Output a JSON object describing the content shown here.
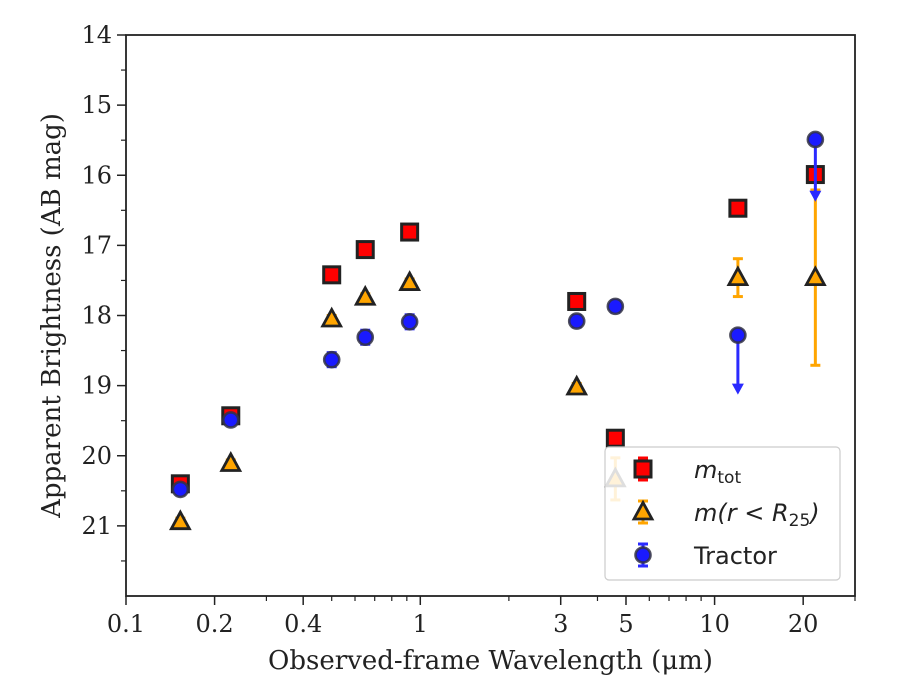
{
  "chart_data": {
    "type": "scatter",
    "title": "",
    "xlabel": "Observed-frame Wavelength (μm)",
    "ylabel": "Apparent Brightness (AB mag)",
    "x_scale": "log",
    "xlim": [
      0.1,
      30
    ],
    "ylim": [
      22,
      14
    ],
    "y_inverted": true,
    "x_ticks": [
      0.1,
      0.2,
      0.4,
      1,
      3,
      5,
      10,
      20
    ],
    "x_tick_labels": [
      "0.1",
      "0.2",
      "0.4",
      "1",
      "3",
      "5",
      "10",
      "20"
    ],
    "y_ticks": [
      14,
      15,
      16,
      17,
      18,
      19,
      20,
      21
    ],
    "y_tick_labels": [
      "14",
      "15",
      "16",
      "17",
      "18",
      "19",
      "20",
      "21"
    ],
    "grid": false,
    "legend_position": "bottom-right",
    "series": [
      {
        "name": "m_tot",
        "legend_main": "m",
        "legend_sub": "tot",
        "marker": "square",
        "color": "#ff0000",
        "edge_color": "#222222",
        "err_color": "#ff0000",
        "points": [
          {
            "x": 0.153,
            "y": 20.4,
            "err": 0.1
          },
          {
            "x": 0.227,
            "y": 19.43,
            "err": 0.1
          },
          {
            "x": 0.5,
            "y": 17.42,
            "err": 0.05
          },
          {
            "x": 0.65,
            "y": 17.06,
            "err": 0.05
          },
          {
            "x": 0.92,
            "y": 16.81,
            "err": 0.05
          },
          {
            "x": 3.4,
            "y": 17.8,
            "err": 0.05
          },
          {
            "x": 4.6,
            "y": 19.75,
            "err": 0.05
          },
          {
            "x": 12.0,
            "y": 16.47,
            "err": 0.05
          },
          {
            "x": 22.0,
            "y": 15.99,
            "err": 0.05
          }
        ]
      },
      {
        "name": "m(r < R_25)",
        "legend_main": "m(r < R",
        "legend_sub": "25",
        "legend_tail": ")",
        "marker": "triangle",
        "color": "#ffa500",
        "edge_color": "#222222",
        "err_color": "#ffa500",
        "points": [
          {
            "x": 0.153,
            "y": 20.94,
            "err": 0.05
          },
          {
            "x": 0.227,
            "y": 20.11,
            "err": 0.05
          },
          {
            "x": 0.5,
            "y": 18.05,
            "err": 0.05
          },
          {
            "x": 0.65,
            "y": 17.74,
            "err": 0.05
          },
          {
            "x": 0.92,
            "y": 17.53,
            "err": 0.05
          },
          {
            "x": 3.4,
            "y": 19.02,
            "err": 0.05
          },
          {
            "x": 4.6,
            "y": 20.33,
            "err": 0.3
          },
          {
            "x": 12.0,
            "y": 17.46,
            "err": 0.27
          },
          {
            "x": 22.0,
            "y": 17.46,
            "err": 1.25
          }
        ]
      },
      {
        "name": "Tractor",
        "marker": "circle",
        "color": "#1a1aff",
        "edge_color": "#333344",
        "err_color": "#2a2aff",
        "points": [
          {
            "x": 0.153,
            "y": 20.48,
            "err": 0.06
          },
          {
            "x": 0.227,
            "y": 19.49,
            "err": 0.06
          },
          {
            "x": 0.5,
            "y": 18.63,
            "err": 0.1
          },
          {
            "x": 0.65,
            "y": 18.31,
            "err": 0.1
          },
          {
            "x": 0.92,
            "y": 18.09,
            "err": 0.1
          },
          {
            "x": 3.4,
            "y": 18.08,
            "err": 0.08
          },
          {
            "x": 4.6,
            "y": 17.87,
            "err": 0.08
          },
          {
            "x": 12.0,
            "y": 18.28,
            "upper_limit_to": 19.1
          },
          {
            "x": 22.0,
            "y": 15.49,
            "upper_limit_to": 16.35
          }
        ]
      }
    ]
  }
}
